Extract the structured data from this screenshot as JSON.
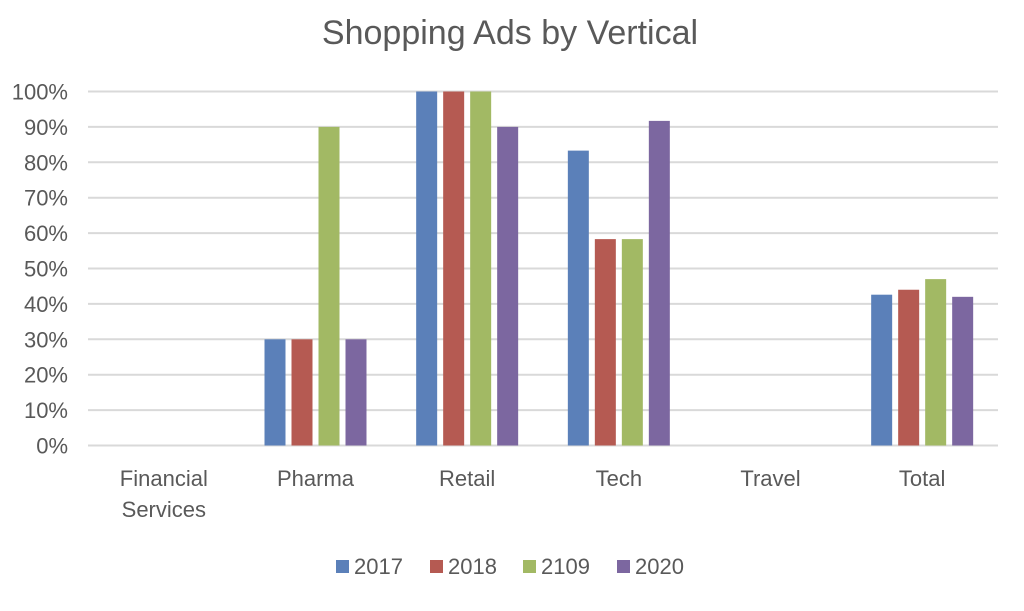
{
  "chart_data": {
    "type": "bar",
    "title": "Shopping Ads by Vertical",
    "xlabel": "",
    "ylabel": "",
    "categories": [
      "Financial Services",
      "Pharma",
      "Retail",
      "Tech",
      "Travel",
      "Total"
    ],
    "category_lines": [
      [
        "Financial",
        "Services"
      ],
      [
        "Pharma"
      ],
      [
        "Retail"
      ],
      [
        "Tech"
      ],
      [
        "Travel"
      ],
      [
        "Total"
      ]
    ],
    "ylim": [
      0,
      100
    ],
    "yticks": [
      0,
      10,
      20,
      30,
      40,
      50,
      60,
      70,
      80,
      90,
      100
    ],
    "ytick_labels": [
      "0%",
      "10%",
      "20%",
      "30%",
      "40%",
      "50%",
      "60%",
      "70%",
      "80%",
      "90%",
      "100%"
    ],
    "grid": true,
    "legend_position": "bottom",
    "series": [
      {
        "name": "2017",
        "color": "#5b80b9",
        "values": [
          0,
          30,
          100,
          83.3,
          0,
          42.6
        ]
      },
      {
        "name": "2018",
        "color": "#b55a52",
        "values": [
          0,
          30,
          100,
          58.3,
          0,
          44
        ]
      },
      {
        "name": "2109",
        "color": "#a2b964",
        "values": [
          0,
          90,
          100,
          58.3,
          0,
          47
        ]
      },
      {
        "name": "2020",
        "color": "#7c67a0",
        "values": [
          0,
          30,
          90,
          91.7,
          0,
          42
        ]
      }
    ]
  }
}
